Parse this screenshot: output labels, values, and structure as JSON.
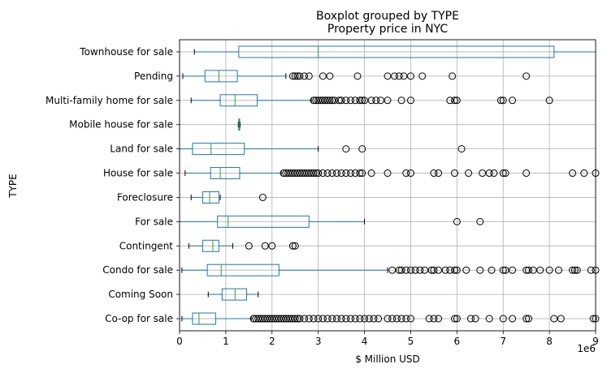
{
  "chart_data": {
    "type": "boxplot",
    "suptitle": "Boxplot grouped by TYPE",
    "title": "Property price in NYC",
    "xlabel": "$ Million USD",
    "ylabel": "TYPE",
    "x_offset_label": "1e6",
    "xlim": [
      0,
      9
    ],
    "x_ticks": [
      "0",
      "1",
      "2",
      "3",
      "4",
      "5",
      "6",
      "7",
      "8",
      "9"
    ],
    "grid": true,
    "box_color": "#1f77b4",
    "median_color": "#2ca02c",
    "categories": [
      {
        "name": "Townhouse for sale",
        "whisker_low": 0.32,
        "q1": 1.28,
        "median": 3.0,
        "q3": 8.1,
        "whisker_high": 9.0,
        "outliers": []
      },
      {
        "name": "Pending",
        "whisker_low": 0.07,
        "q1": 0.55,
        "median": 0.85,
        "q3": 1.25,
        "whisker_high": 2.3,
        "outliers": [
          2.45,
          2.5,
          2.55,
          2.6,
          2.7,
          2.8,
          3.1,
          3.25,
          3.85,
          4.5,
          4.65,
          4.75,
          4.85,
          5.0,
          5.25,
          5.9,
          7.5
        ]
      },
      {
        "name": "Multi-family home for sale",
        "whisker_low": 0.25,
        "q1": 0.88,
        "median": 1.2,
        "q3": 1.68,
        "whisker_high": 2.85,
        "outliers": [
          2.9,
          2.95,
          3.0,
          3.05,
          3.1,
          3.15,
          3.2,
          3.25,
          3.3,
          3.35,
          3.45,
          3.5,
          3.6,
          3.7,
          3.8,
          3.9,
          3.95,
          4.0,
          4.15,
          4.25,
          4.35,
          4.5,
          4.8,
          5.0,
          5.85,
          5.95,
          6.0,
          6.95,
          7.0,
          7.2,
          8.0
        ]
      },
      {
        "name": "Mobile house for sale",
        "whisker_low": 1.27,
        "q1": 1.28,
        "median": 1.29,
        "q3": 1.3,
        "whisker_high": 1.31,
        "outliers": []
      },
      {
        "name": "Land for sale",
        "whisker_low": 0.0,
        "q1": 0.28,
        "median": 0.68,
        "q3": 1.4,
        "whisker_high": 3.0,
        "outliers": [
          3.6,
          3.95,
          6.1
        ]
      },
      {
        "name": "House for sale",
        "whisker_low": 0.12,
        "q1": 0.67,
        "median": 0.88,
        "q3": 1.3,
        "whisker_high": 2.2,
        "outliers": [
          2.25,
          2.3,
          2.35,
          2.4,
          2.45,
          2.5,
          2.55,
          2.6,
          2.65,
          2.7,
          2.75,
          2.8,
          2.85,
          2.9,
          2.95,
          3.0,
          3.1,
          3.2,
          3.3,
          3.4,
          3.5,
          3.6,
          3.7,
          3.8,
          3.9,
          3.95,
          4.15,
          4.5,
          4.9,
          5.0,
          5.5,
          5.6,
          5.95,
          6.25,
          6.55,
          6.7,
          6.8,
          7.0,
          7.05,
          7.5,
          8.5,
          8.75,
          9.0
        ]
      },
      {
        "name": "Foreclosure",
        "whisker_low": 0.25,
        "q1": 0.5,
        "median": 0.65,
        "q3": 0.85,
        "whisker_high": 0.88,
        "outliers": [
          1.8
        ]
      },
      {
        "name": "For sale",
        "whisker_low": 0.0,
        "q1": 0.82,
        "median": 1.05,
        "q3": 2.8,
        "whisker_high": 4.0,
        "outliers": [
          6.0,
          6.5
        ]
      },
      {
        "name": "Contingent",
        "whisker_low": 0.2,
        "q1": 0.5,
        "median": 0.72,
        "q3": 0.85,
        "whisker_high": 1.15,
        "outliers": [
          1.5,
          1.85,
          2.0,
          2.45,
          2.5
        ]
      },
      {
        "name": "Condo for sale",
        "whisker_low": 0.05,
        "q1": 0.6,
        "median": 0.9,
        "q3": 2.15,
        "whisker_high": 4.5,
        "outliers": [
          4.6,
          4.75,
          4.8,
          4.9,
          5.0,
          5.1,
          5.2,
          5.3,
          5.45,
          5.5,
          5.6,
          5.75,
          5.85,
          5.95,
          6.0,
          6.2,
          6.5,
          6.75,
          7.0,
          7.05,
          7.2,
          7.5,
          7.55,
          7.65,
          7.8,
          8.0,
          8.2,
          8.5,
          8.55,
          8.6,
          8.9,
          9.0
        ]
      },
      {
        "name": "Coming Soon",
        "whisker_low": 0.62,
        "q1": 0.92,
        "median": 1.2,
        "q3": 1.45,
        "whisker_high": 1.7,
        "outliers": []
      },
      {
        "name": "Co-op for sale",
        "whisker_low": 0.05,
        "q1": 0.28,
        "median": 0.42,
        "q3": 0.78,
        "whisker_high": 1.55,
        "outliers": [
          1.6,
          1.65,
          1.7,
          1.75,
          1.8,
          1.85,
          1.9,
          1.95,
          2.0,
          2.05,
          2.1,
          2.15,
          2.2,
          2.25,
          2.3,
          2.35,
          2.4,
          2.45,
          2.5,
          2.55,
          2.6,
          2.7,
          2.8,
          2.9,
          3.0,
          3.1,
          3.2,
          3.3,
          3.4,
          3.5,
          3.6,
          3.7,
          3.8,
          3.9,
          4.0,
          4.1,
          4.2,
          4.3,
          4.5,
          4.6,
          4.7,
          4.8,
          4.9,
          5.0,
          5.4,
          5.5,
          5.6,
          5.95,
          6.0,
          6.3,
          6.4,
          6.7,
          7.0,
          7.2,
          7.5,
          7.55,
          8.1,
          8.25,
          8.95,
          9.0
        ]
      }
    ]
  }
}
